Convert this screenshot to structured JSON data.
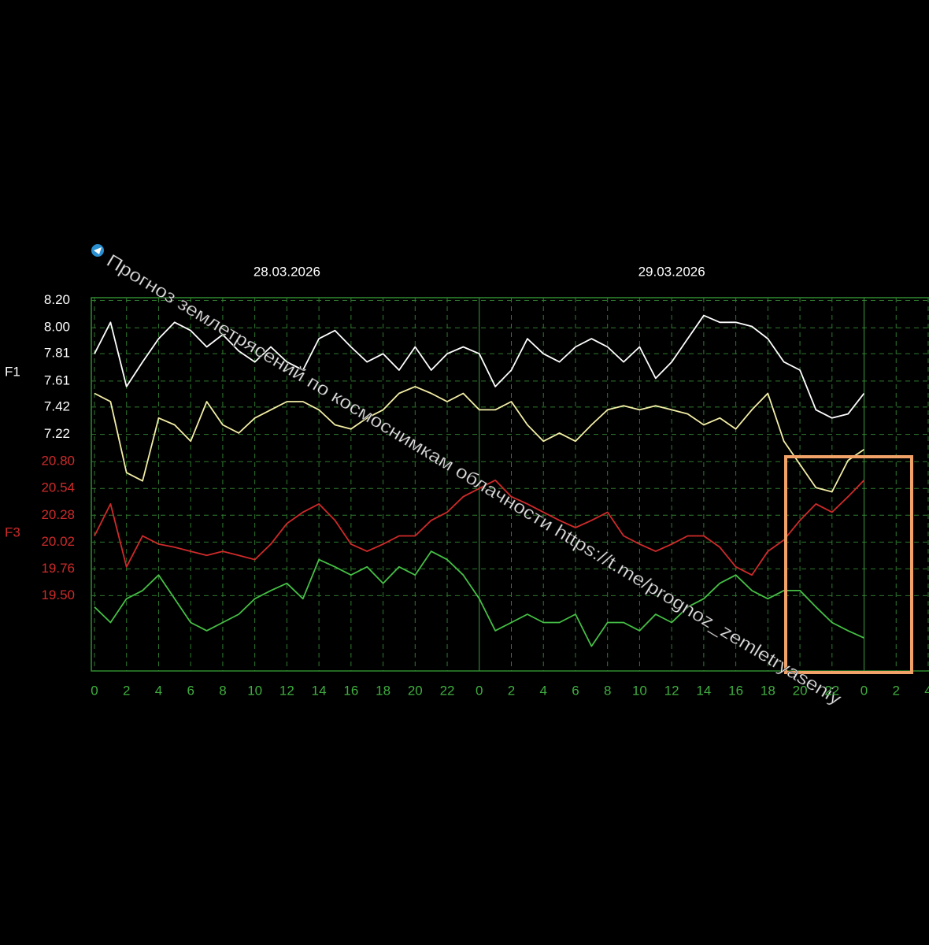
{
  "chart_data": {
    "type": "line",
    "dates": [
      "28.03.2026",
      "29.03.2026"
    ],
    "ylabel": "F1",
    "y2label": "F3",
    "watermark": "Прогноз землетрясений по космоснимкам облачности  https://t.me/prognoz_zemletryaseniy",
    "grid": true,
    "x": [
      0,
      1,
      2,
      3,
      4,
      5,
      6,
      7,
      8,
      9,
      10,
      11,
      12,
      13,
      14,
      15,
      16,
      17,
      18,
      19,
      20,
      21,
      22,
      23,
      24,
      25,
      26,
      27,
      28,
      29,
      30,
      31,
      32,
      33,
      34,
      35,
      36,
      37,
      38,
      39,
      40,
      41,
      42,
      43,
      44,
      45,
      46,
      47,
      48
    ],
    "xlim": [
      0,
      52
    ],
    "xticks": [
      0,
      2,
      4,
      6,
      8,
      10,
      12,
      14,
      16,
      18,
      20,
      22,
      {
        "value": 24,
        "label": "0"
      },
      {
        "value": 26,
        "label": "2"
      },
      {
        "value": 28,
        "label": "4"
      },
      {
        "value": 30,
        "label": "6"
      },
      {
        "value": 32,
        "label": "8"
      },
      {
        "value": 34,
        "label": "10"
      },
      {
        "value": 36,
        "label": "12"
      },
      {
        "value": 38,
        "label": "14"
      },
      {
        "value": 40,
        "label": "16"
      },
      {
        "value": 42,
        "label": "18"
      },
      {
        "value": 44,
        "label": "20"
      },
      {
        "value": 46,
        "label": "22"
      },
      {
        "value": 48,
        "label": "0"
      },
      {
        "value": 50,
        "label": "2"
      },
      {
        "value": 52,
        "label": "4"
      }
    ],
    "ylim": [
      5.49,
      8.22
    ],
    "yticks": [
      {
        "value": 8.2,
        "label": "8.20"
      },
      {
        "value": 8.0,
        "label": "8.00"
      },
      7.81,
      7.61,
      7.42,
      7.22
    ],
    "y2lim": [
      18.77,
      22.39
    ],
    "y2ticks": [
      {
        "value": 20.8,
        "label": "20.80"
      },
      20.54,
      20.28,
      20.02,
      19.76,
      {
        "value": 19.5,
        "label": "19.50"
      }
    ],
    "series": [
      {
        "color": "#ffffff",
        "axis": "y",
        "values": [
          7.81,
          8.04,
          7.57,
          7.75,
          7.92,
          8.04,
          7.98,
          7.86,
          7.95,
          7.83,
          7.75,
          7.86,
          7.75,
          7.69,
          7.92,
          7.98,
          7.86,
          7.75,
          7.81,
          7.69,
          7.86,
          7.69,
          7.81,
          7.86,
          7.81,
          7.57,
          7.69,
          7.92,
          7.81,
          7.75,
          7.86,
          7.92,
          7.86,
          7.75,
          7.86,
          7.63,
          7.75,
          7.92,
          8.09,
          8.04,
          8.04,
          8.01,
          7.92,
          7.75,
          7.69,
          7.4,
          7.34,
          7.37,
          7.52
        ]
      },
      {
        "color": "#f3eea6",
        "axis": "y",
        "values": [
          7.52,
          7.46,
          6.94,
          6.88,
          7.34,
          7.29,
          7.17,
          7.46,
          7.29,
          7.23,
          7.34,
          7.4,
          7.46,
          7.46,
          7.4,
          7.29,
          7.26,
          7.34,
          7.4,
          7.52,
          7.57,
          7.52,
          7.46,
          7.52,
          7.4,
          7.4,
          7.46,
          7.29,
          7.17,
          7.23,
          7.17,
          7.29,
          7.4,
          7.43,
          7.4,
          7.43,
          7.4,
          7.37,
          7.29,
          7.34,
          7.26,
          7.4,
          7.52,
          7.17,
          7.0,
          6.83,
          6.8,
          7.03,
          7.11
        ]
      },
      {
        "color": "#d02a2a",
        "axis": "y2",
        "values": [
          20.08,
          20.39,
          19.78,
          20.08,
          20.0,
          19.97,
          19.93,
          19.89,
          19.93,
          19.89,
          19.85,
          20.0,
          20.2,
          20.31,
          20.39,
          20.23,
          20.0,
          19.93,
          20.0,
          20.08,
          20.08,
          20.23,
          20.31,
          20.46,
          20.54,
          20.62,
          20.46,
          20.39,
          20.31,
          20.23,
          20.16,
          20.23,
          20.31,
          20.08,
          20.0,
          19.93,
          20.0,
          20.08,
          20.08,
          19.97,
          19.78,
          19.7,
          19.93,
          20.04,
          20.23,
          20.39,
          20.31,
          20.46,
          20.62
        ]
      },
      {
        "color": "#45c045",
        "axis": "y2",
        "values": [
          19.39,
          19.24,
          19.47,
          19.55,
          19.7,
          19.47,
          19.24,
          19.16,
          19.24,
          19.32,
          19.47,
          19.55,
          19.62,
          19.47,
          19.85,
          19.78,
          19.7,
          19.78,
          19.62,
          19.78,
          19.7,
          19.93,
          19.85,
          19.7,
          19.47,
          19.16,
          19.24,
          19.32,
          19.24,
          19.24,
          19.32,
          19.01,
          19.24,
          19.24,
          19.16,
          19.32,
          19.24,
          19.39,
          19.47,
          19.62,
          19.7,
          19.55,
          19.47,
          19.55,
          19.55,
          19.39,
          19.24,
          19.16,
          19.09
        ]
      }
    ]
  }
}
